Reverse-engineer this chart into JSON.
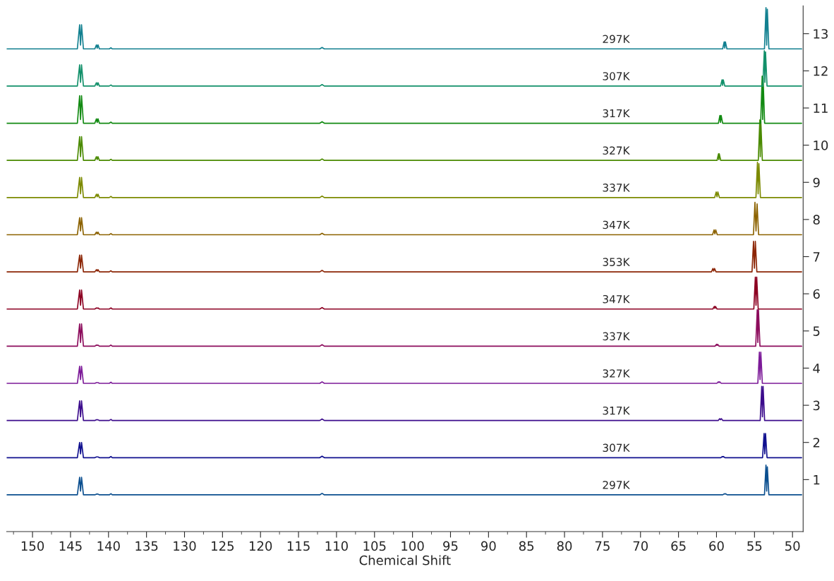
{
  "chart_data": {
    "type": "line",
    "xlabel": "Chemical Shift",
    "xlim": [
      153.4,
      48.6
    ],
    "ylim": [
      -0.4,
      13.75
    ],
    "xticks": [
      {
        "value": 152.5,
        "label": null
      },
      150,
      {
        "value": 147.5,
        "label": null
      },
      145,
      {
        "value": 142.5,
        "label": null
      },
      140,
      {
        "value": 137.5,
        "label": null
      },
      135,
      {
        "value": 132.5,
        "label": null
      },
      130,
      {
        "value": 127.5,
        "label": null
      },
      125,
      {
        "value": 122.5,
        "label": null
      },
      120,
      {
        "value": 117.5,
        "label": null
      },
      115,
      {
        "value": 112.5,
        "label": null
      },
      110,
      {
        "value": 107.5,
        "label": null
      },
      105,
      {
        "value": 102.5,
        "label": null
      },
      100,
      {
        "value": 97.5,
        "label": null
      },
      95,
      {
        "value": 92.5,
        "label": null
      },
      90,
      {
        "value": 87.5,
        "label": null
      },
      85,
      {
        "value": 82.5,
        "label": null
      },
      80,
      {
        "value": 77.5,
        "label": null
      },
      75,
      {
        "value": 72.5,
        "label": null
      },
      70,
      {
        "value": 67.5,
        "label": null
      },
      65,
      {
        "value": 62.5,
        "label": null
      },
      60,
      {
        "value": 57.5,
        "label": null
      },
      55,
      {
        "value": 52.5,
        "label": null
      },
      50
    ],
    "yticks": [
      1,
      2,
      3,
      4,
      5,
      6,
      7,
      8,
      9,
      10,
      11,
      12,
      13
    ],
    "series": [
      {
        "name": "297K",
        "color": "#0b4f8f",
        "x": [
          153.4,
          144.1,
          143.8,
          143.68,
          143.55,
          143.3,
          141.8,
          141.59,
          141.49,
          141.38,
          141.2,
          139.9,
          139.68,
          139.5,
          112.2,
          111.9,
          111.6,
          59.17,
          58.97,
          58.89,
          58.8,
          58.6,
          53.69,
          53.49,
          53.4,
          53.31,
          53.11,
          48.8
        ],
        "values": [
          0.59,
          0.59,
          1.06,
          0.69,
          1.06,
          0.59,
          0.59,
          0.61,
          0.61,
          0.61,
          0.59,
          0.59,
          0.62,
          0.59,
          0.59,
          0.63,
          0.59,
          0.59,
          0.62,
          0.61,
          0.62,
          0.59,
          0.59,
          1.39,
          0.69,
          1.34,
          0.59,
          0.59
        ]
      },
      {
        "name": "307K",
        "color": "#10108f",
        "x": [
          153.4,
          144.1,
          143.8,
          143.68,
          143.55,
          143.3,
          141.8,
          141.59,
          141.49,
          141.38,
          141.2,
          139.9,
          139.68,
          139.5,
          112.2,
          111.9,
          111.6,
          59.44,
          59.24,
          59.16,
          59.08,
          58.88,
          53.94,
          53.74,
          53.65,
          53.55,
          53.35,
          48.8
        ],
        "values": [
          1.59,
          1.59,
          2.0,
          1.69,
          2.0,
          1.59,
          1.59,
          1.61,
          1.61,
          1.61,
          1.59,
          1.59,
          1.62,
          1.59,
          1.59,
          1.63,
          1.59,
          1.59,
          1.62,
          1.61,
          1.62,
          1.59,
          1.59,
          2.24,
          1.69,
          2.24,
          1.59,
          1.59
        ]
      },
      {
        "name": "317K",
        "color": "#3c0c8c",
        "x": [
          153.4,
          144.1,
          143.8,
          143.68,
          143.55,
          143.3,
          141.8,
          141.59,
          141.49,
          141.38,
          141.2,
          139.9,
          139.68,
          139.5,
          112.2,
          111.9,
          111.6,
          59.78,
          59.58,
          59.47,
          59.36,
          59.16,
          54.25,
          54.05,
          53.96,
          53.87,
          53.67,
          48.8
        ],
        "values": [
          2.59,
          2.59,
          3.12,
          2.69,
          3.12,
          2.59,
          2.59,
          2.61,
          2.61,
          2.61,
          2.59,
          2.59,
          2.62,
          2.59,
          2.59,
          2.63,
          2.59,
          2.59,
          2.64,
          2.61,
          2.64,
          2.59,
          2.59,
          3.51,
          2.69,
          3.51,
          2.59,
          2.59
        ]
      },
      {
        "name": "327K",
        "color": "#7c1a98",
        "x": [
          153.4,
          144.1,
          143.8,
          143.68,
          143.55,
          143.3,
          141.8,
          141.59,
          141.49,
          141.38,
          141.2,
          139.9,
          139.68,
          139.5,
          112.2,
          111.9,
          111.6,
          59.96,
          59.76,
          59.67,
          59.58,
          59.38,
          54.56,
          54.36,
          54.27,
          54.17,
          53.97,
          48.8
        ],
        "values": [
          3.59,
          3.59,
          4.05,
          3.69,
          4.05,
          3.59,
          3.59,
          3.61,
          3.61,
          3.61,
          3.59,
          3.59,
          3.62,
          3.59,
          3.59,
          3.63,
          3.59,
          3.59,
          3.63,
          3.61,
          3.63,
          3.59,
          3.59,
          4.43,
          3.69,
          4.43,
          3.59,
          3.59
        ]
      },
      {
        "name": "337K",
        "color": "#8c0c5c",
        "x": [
          153.4,
          144.1,
          143.8,
          143.68,
          143.55,
          143.3,
          141.8,
          141.59,
          141.49,
          141.38,
          141.2,
          139.9,
          139.68,
          139.5,
          112.2,
          111.9,
          111.6,
          60.2,
          60.0,
          59.93,
          59.85,
          59.65,
          54.84,
          54.64,
          54.56,
          54.48,
          54.28,
          48.8
        ],
        "values": [
          4.59,
          4.59,
          5.19,
          4.69,
          5.19,
          4.59,
          4.59,
          4.62,
          4.61,
          4.62,
          4.59,
          4.59,
          4.62,
          4.59,
          4.59,
          4.63,
          4.59,
          4.59,
          4.64,
          4.61,
          4.64,
          4.59,
          4.59,
          5.57,
          4.69,
          5.57,
          4.59,
          4.59
        ]
      },
      {
        "name": "347K",
        "color": "#8c0022",
        "x": [
          153.4,
          144.1,
          143.8,
          143.68,
          143.55,
          143.3,
          141.8,
          141.59,
          141.49,
          141.38,
          141.2,
          139.9,
          139.68,
          139.5,
          112.2,
          111.9,
          111.6,
          60.49,
          60.29,
          60.21,
          60.13,
          59.93,
          55.09,
          54.89,
          54.8,
          54.71,
          54.51,
          48.8
        ],
        "values": [
          5.59,
          5.59,
          6.1,
          5.69,
          6.1,
          5.59,
          5.59,
          5.62,
          5.61,
          5.62,
          5.59,
          5.59,
          5.62,
          5.59,
          5.59,
          5.63,
          5.59,
          5.59,
          5.66,
          5.61,
          5.66,
          5.59,
          5.59,
          6.45,
          5.69,
          6.45,
          5.59,
          5.59
        ]
      },
      {
        "name": "353K",
        "color": "#8c2606",
        "x": [
          153.4,
          144.1,
          143.8,
          143.68,
          143.55,
          143.3,
          141.8,
          141.59,
          141.49,
          141.38,
          141.2,
          139.9,
          139.68,
          139.5,
          112.2,
          111.9,
          111.6,
          60.67,
          60.47,
          60.37,
          60.26,
          60.06,
          55.33,
          55.13,
          55.01,
          54.89,
          54.69,
          48.8
        ],
        "values": [
          6.59,
          6.59,
          7.04,
          6.69,
          7.04,
          6.59,
          6.59,
          6.65,
          6.61,
          6.65,
          6.59,
          6.59,
          6.62,
          6.59,
          6.59,
          6.63,
          6.59,
          6.59,
          6.68,
          6.61,
          6.68,
          6.59,
          6.59,
          7.41,
          6.69,
          7.41,
          6.59,
          6.59
        ]
      },
      {
        "name": "347K",
        "color": "#8c6200",
        "x": [
          153.4,
          144.1,
          143.8,
          143.68,
          143.55,
          143.3,
          141.8,
          141.59,
          141.49,
          141.38,
          141.2,
          139.9,
          139.68,
          139.5,
          112.2,
          111.9,
          111.6,
          60.52,
          60.32,
          60.21,
          60.1,
          59.9,
          55.14,
          54.94,
          54.8,
          54.66,
          54.46,
          48.8
        ],
        "values": [
          7.59,
          7.59,
          8.05,
          7.69,
          8.05,
          7.59,
          7.59,
          7.66,
          7.61,
          7.66,
          7.59,
          7.59,
          7.62,
          7.59,
          7.59,
          7.63,
          7.59,
          7.59,
          7.72,
          7.61,
          7.72,
          7.59,
          7.59,
          8.46,
          7.69,
          8.42,
          7.59,
          7.59
        ]
      },
      {
        "name": "337K",
        "color": "#7c8a00",
        "x": [
          153.4,
          144.1,
          143.8,
          143.68,
          143.55,
          143.3,
          141.8,
          141.59,
          141.49,
          141.38,
          141.2,
          139.9,
          139.68,
          139.5,
          112.2,
          111.9,
          111.6,
          60.24,
          60.04,
          59.93,
          59.82,
          59.62,
          54.81,
          54.61,
          54.52,
          54.42,
          54.22,
          48.8
        ],
        "values": [
          8.59,
          8.59,
          9.13,
          8.69,
          9.13,
          8.59,
          8.59,
          8.68,
          8.61,
          8.68,
          8.59,
          8.59,
          8.62,
          8.59,
          8.59,
          8.63,
          8.59,
          8.59,
          8.74,
          8.61,
          8.74,
          8.59,
          8.59,
          9.54,
          8.69,
          9.5,
          8.59,
          8.59
        ]
      },
      {
        "name": "327K",
        "color": "#4a8a00",
        "x": [
          153.4,
          144.1,
          143.8,
          143.68,
          143.55,
          143.3,
          141.8,
          141.59,
          141.49,
          141.38,
          141.2,
          139.9,
          139.68,
          139.5,
          112.2,
          111.9,
          111.6,
          59.93,
          59.73,
          59.69,
          59.64,
          59.44,
          54.5,
          54.3,
          54.24,
          54.17,
          53.97,
          48.8
        ],
        "values": [
          9.59,
          9.59,
          10.23,
          9.69,
          10.23,
          9.59,
          9.59,
          9.69,
          9.61,
          9.69,
          9.59,
          9.59,
          9.62,
          9.59,
          9.59,
          9.63,
          9.59,
          9.59,
          9.77,
          9.61,
          9.77,
          9.59,
          9.59,
          10.68,
          9.69,
          10.65,
          9.59,
          9.59
        ]
      },
      {
        "name": "317K",
        "color": "#128a12",
        "x": [
          153.4,
          144.1,
          143.8,
          143.68,
          143.55,
          143.3,
          141.8,
          141.59,
          141.49,
          141.38,
          141.2,
          139.9,
          139.68,
          139.5,
          112.2,
          111.9,
          111.6,
          59.75,
          59.55,
          59.47,
          59.39,
          59.19,
          54.19,
          53.99,
          53.93,
          53.87,
          53.67,
          48.8
        ],
        "values": [
          10.59,
          10.59,
          11.33,
          10.69,
          11.33,
          10.59,
          10.59,
          10.71,
          10.61,
          10.71,
          10.59,
          10.59,
          10.62,
          10.59,
          10.59,
          10.63,
          10.59,
          10.59,
          10.8,
          10.61,
          10.8,
          10.59,
          10.59,
          11.86,
          10.69,
          11.81,
          10.59,
          10.59
        ]
      },
      {
        "name": "307K",
        "color": "#12906a",
        "x": [
          153.4,
          144.1,
          143.8,
          143.68,
          143.55,
          143.3,
          141.8,
          141.59,
          141.49,
          141.38,
          141.2,
          139.9,
          139.68,
          139.5,
          112.2,
          111.9,
          111.6,
          59.47,
          59.27,
          59.19,
          59.11,
          58.91,
          53.91,
          53.71,
          53.63,
          53.55,
          53.35,
          48.8
        ],
        "values": [
          11.59,
          11.59,
          12.16,
          11.69,
          12.16,
          11.59,
          11.59,
          11.68,
          11.61,
          11.68,
          11.59,
          11.59,
          11.62,
          11.59,
          11.59,
          11.63,
          11.59,
          11.59,
          11.76,
          11.61,
          11.76,
          11.59,
          11.59,
          12.54,
          11.69,
          12.51,
          11.59,
          11.59
        ]
      },
      {
        "name": "297K",
        "color": "#128090",
        "x": [
          153.4,
          144.1,
          143.8,
          143.68,
          143.55,
          143.3,
          141.8,
          141.59,
          141.49,
          141.38,
          141.2,
          139.9,
          139.68,
          139.5,
          112.2,
          111.9,
          111.6,
          59.19,
          58.99,
          58.91,
          58.83,
          58.63,
          53.69,
          53.49,
          53.4,
          53.31,
          53.11,
          48.8
        ],
        "values": [
          12.59,
          12.59,
          13.24,
          12.69,
          13.24,
          12.59,
          12.59,
          12.7,
          12.61,
          12.7,
          12.59,
          12.59,
          12.62,
          12.59,
          12.59,
          12.63,
          12.59,
          12.59,
          12.78,
          12.61,
          12.78,
          12.59,
          12.59,
          13.7,
          12.69,
          13.66,
          12.59,
          12.59
        ]
      }
    ]
  }
}
